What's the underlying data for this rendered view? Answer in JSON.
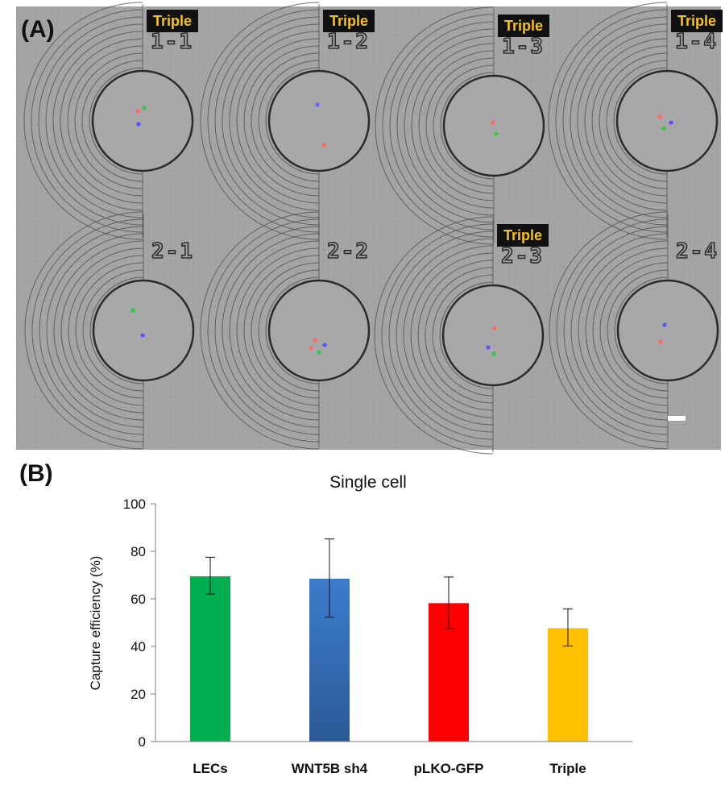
{
  "panel_a": {
    "label": "(A)",
    "chambers": [
      {
        "id": "1-1",
        "badge": "Triple",
        "cells": [
          {
            "c": "#2ecc40",
            "dx": 2,
            "dy": -16
          },
          {
            "c": "#ff6666",
            "dx": -6,
            "dy": -12
          },
          {
            "c": "#5555ff",
            "dx": -5,
            "dy": 4
          }
        ]
      },
      {
        "id": "1-2",
        "badge": "Triple",
        "cells": [
          {
            "c": "#6666ff",
            "dx": -2,
            "dy": -20
          },
          {
            "c": "#ff6666",
            "dx": 6,
            "dy": 30
          }
        ]
      },
      {
        "id": "1-3",
        "badge": "Triple",
        "cells": [
          {
            "c": "#ff6666",
            "dx": -1,
            "dy": -4
          },
          {
            "c": "#2ecc40",
            "dx": 3,
            "dy": 10
          }
        ]
      },
      {
        "id": "1-4",
        "badge": "Triple",
        "cells": [
          {
            "c": "#ff6666",
            "dx": -9,
            "dy": -5
          },
          {
            "c": "#5555ff",
            "dx": 5,
            "dy": 2
          },
          {
            "c": "#2ecc40",
            "dx": -4,
            "dy": 9
          }
        ]
      },
      {
        "id": "2-1",
        "badge": "",
        "cells": [
          {
            "c": "#2ecc40",
            "dx": -13,
            "dy": -25
          },
          {
            "c": "#5555ff",
            "dx": -1,
            "dy": 6
          }
        ]
      },
      {
        "id": "2-2",
        "badge": "",
        "cells": [
          {
            "c": "#ff6666",
            "dx": -5,
            "dy": 12
          },
          {
            "c": "#5555ff",
            "dx": 7,
            "dy": 18
          },
          {
            "c": "#ff6666",
            "dx": -10,
            "dy": 22
          },
          {
            "c": "#2ecc40",
            "dx": 0,
            "dy": 27
          }
        ]
      },
      {
        "id": "2-3",
        "badge": "Triple",
        "cells": [
          {
            "c": "#ff6666",
            "dx": 2,
            "dy": -9
          },
          {
            "c": "#5555ff",
            "dx": -6,
            "dy": 15
          },
          {
            "c": "#2ecc40",
            "dx": 1,
            "dy": 23
          }
        ]
      },
      {
        "id": "2-4",
        "badge": "",
        "cells": [
          {
            "c": "#5555ff",
            "dx": -4,
            "dy": -7
          },
          {
            "c": "#ff6666",
            "dx": -9,
            "dy": 14
          }
        ]
      }
    ]
  },
  "panel_b": {
    "label": "(B)"
  },
  "chart_data": {
    "type": "bar",
    "title": "Single cell",
    "xlabel": "",
    "ylabel": "Capture efficiency (%)",
    "ylim": [
      0,
      100
    ],
    "yticks": [
      0,
      20,
      40,
      60,
      80,
      100
    ],
    "grid": false,
    "legend": "none",
    "categories": [
      "LECs",
      "WNT5B sh4",
      "pLKO-GFP",
      "Triple"
    ],
    "values": [
      69.5,
      68.5,
      58.2,
      47.7
    ],
    "error_low": [
      62,
      52.3,
      47.5,
      40.2
    ],
    "error_high": [
      77.5,
      85.2,
      69.2,
      55.8
    ],
    "colors": [
      "#00b050",
      "#3a78c8",
      "#ff0000",
      "#ffc000"
    ],
    "gradient_bottom": [
      "#00b050",
      "#2a5a9a",
      "#ff0000",
      "#ffc000"
    ]
  }
}
